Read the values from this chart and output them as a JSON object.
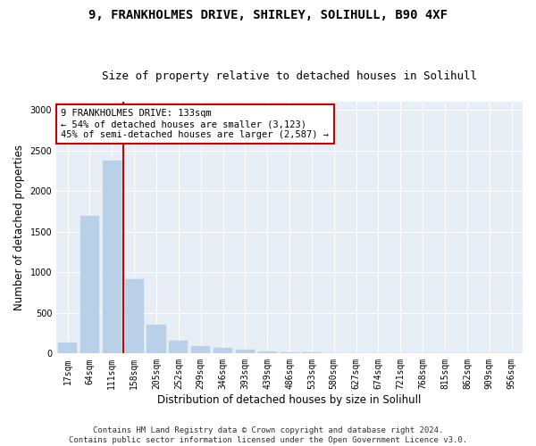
{
  "title1": "9, FRANKHOLMES DRIVE, SHIRLEY, SOLIHULL, B90 4XF",
  "title2": "Size of property relative to detached houses in Solihull",
  "xlabel": "Distribution of detached houses by size in Solihull",
  "ylabel": "Number of detached properties",
  "categories": [
    "17sqm",
    "64sqm",
    "111sqm",
    "158sqm",
    "205sqm",
    "252sqm",
    "299sqm",
    "346sqm",
    "393sqm",
    "439sqm",
    "486sqm",
    "533sqm",
    "580sqm",
    "627sqm",
    "674sqm",
    "721sqm",
    "768sqm",
    "815sqm",
    "862sqm",
    "909sqm",
    "956sqm"
  ],
  "values": [
    130,
    1700,
    2380,
    920,
    350,
    160,
    90,
    70,
    50,
    25,
    20,
    10,
    0,
    0,
    0,
    0,
    0,
    0,
    0,
    0,
    0
  ],
  "bar_color": "#b8d0e8",
  "bar_edge_color": "#b8d0e8",
  "vline_x_idx": 2,
  "vline_color": "#cc0000",
  "annotation_text": "9 FRANKHOLMES DRIVE: 133sqm\n← 54% of detached houses are smaller (3,123)\n45% of semi-detached houses are larger (2,587) →",
  "annotation_box_facecolor": "#ffffff",
  "annotation_box_edgecolor": "#cc0000",
  "ylim": [
    0,
    3100
  ],
  "yticks": [
    0,
    500,
    1000,
    1500,
    2000,
    2500,
    3000
  ],
  "footer": "Contains HM Land Registry data © Crown copyright and database right 2024.\nContains public sector information licensed under the Open Government Licence v3.0.",
  "fig_bg_color": "#ffffff",
  "plot_bg_color": "#e8eef5",
  "grid_color": "#ffffff",
  "title1_fontsize": 10,
  "title2_fontsize": 9,
  "axis_label_fontsize": 8.5,
  "tick_fontsize": 7,
  "annotation_fontsize": 7.5,
  "footer_fontsize": 6.5
}
